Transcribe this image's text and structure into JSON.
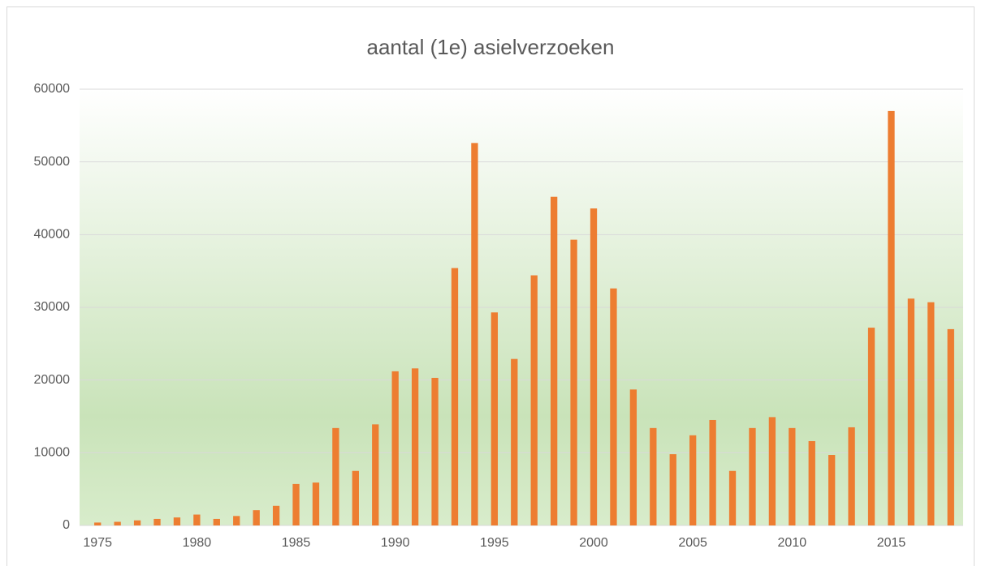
{
  "chart_data": {
    "type": "bar",
    "title": "aantal (1e) asielverzoeken",
    "categories": [
      "1975",
      null,
      null,
      null,
      null,
      "1980",
      null,
      null,
      null,
      null,
      "1985",
      null,
      null,
      null,
      null,
      "1990",
      null,
      null,
      null,
      null,
      "1995",
      null,
      null,
      null,
      null,
      "2000",
      null,
      null,
      null,
      null,
      "2005",
      null,
      null,
      null,
      null,
      "2010",
      null,
      null,
      null,
      null,
      "2015",
      null,
      null,
      null
    ],
    "values": [
      400,
      500,
      700,
      900,
      1100,
      1500,
      900,
      1300,
      2100,
      2700,
      5700,
      5900,
      13400,
      7500,
      13900,
      21200,
      21600,
      20300,
      35400,
      52600,
      29300,
      22900,
      34400,
      45200,
      39300,
      43600,
      32600,
      18700,
      13400,
      9800,
      12400,
      14500,
      7500,
      13400,
      14900,
      13400,
      11600,
      9700,
      13500,
      27200,
      57000,
      31200,
      30700,
      27000
    ],
    "color": "#ed7d31",
    "ylim": [
      0,
      60000
    ],
    "yticks": [
      0,
      10000,
      20000,
      30000,
      40000,
      50000,
      60000
    ],
    "grid": true
  }
}
